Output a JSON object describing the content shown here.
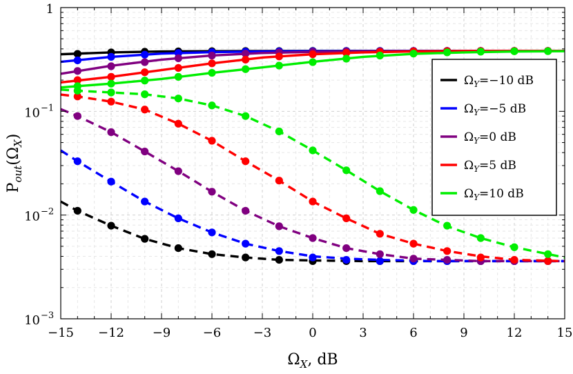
{
  "chart_data": {
    "type": "line",
    "xlabel": "Ω_X, dB",
    "ylabel": "P_out(Ω_X)",
    "xlim": [
      -15,
      15
    ],
    "ylim": [
      0.001,
      1
    ],
    "yscale": "log",
    "xticks": [
      -15,
      -12,
      -9,
      -6,
      -3,
      0,
      3,
      6,
      9,
      12,
      15
    ],
    "xtick_labels": [
      "−15",
      "−12",
      "−9",
      "−6",
      "−3",
      "0",
      "3",
      "6",
      "9",
      "12",
      "15"
    ],
    "yticks": [
      0.001,
      0.01,
      0.1,
      1
    ],
    "ytick_labels": [
      {
        "base": "10",
        "exp": "−3"
      },
      {
        "base": "10",
        "exp": "−2"
      },
      {
        "base": "10",
        "exp": "−1"
      },
      {
        "base": "1",
        "exp": ""
      }
    ],
    "grid": true,
    "legend_position": "right",
    "series": [
      {
        "name": "Ω_Y=−10 dB",
        "color": "#000000",
        "upper_x": [
          -15,
          -12,
          -9,
          -6,
          -3,
          0,
          3,
          6,
          9,
          12,
          15
        ],
        "upper_y": [
          0.355,
          0.37,
          0.378,
          0.38,
          0.381,
          0.382,
          0.382,
          0.382,
          0.382,
          0.382,
          0.382
        ],
        "upper_markers_x": [
          -14,
          -12,
          -10,
          -8,
          -6,
          -4,
          -2,
          0,
          2,
          4,
          6,
          8,
          10,
          12,
          14
        ],
        "upper_markers_y": [
          0.358,
          0.37,
          0.375,
          0.378,
          0.38,
          0.381,
          0.381,
          0.382,
          0.382,
          0.382,
          0.382,
          0.382,
          0.382,
          0.382,
          0.382
        ],
        "lower_x": [
          -15,
          -14,
          -12,
          -10,
          -8,
          -6,
          -4,
          -2,
          0,
          3,
          6,
          9,
          12,
          15
        ],
        "lower_y": [
          0.0135,
          0.011,
          0.0079,
          0.0059,
          0.0048,
          0.0042,
          0.0039,
          0.0037,
          0.00365,
          0.0036,
          0.0036,
          0.0036,
          0.0036,
          0.0036
        ],
        "lower_markers_x": [
          -14,
          -12,
          -10,
          -8,
          -6,
          -4,
          -2,
          0,
          2,
          4,
          6,
          8,
          10,
          12,
          14
        ],
        "lower_markers_y": [
          0.011,
          0.0079,
          0.0059,
          0.0048,
          0.0042,
          0.0039,
          0.0037,
          0.0036,
          0.0036,
          0.0036,
          0.0036,
          0.0036,
          0.0036,
          0.0036,
          0.0036
        ]
      },
      {
        "name": "Ω_Y=−5 dB",
        "color": "#0000ff",
        "upper_x": [
          -15,
          -12,
          -9,
          -6,
          -3,
          0,
          3,
          6,
          9,
          12,
          15
        ],
        "upper_y": [
          0.3,
          0.335,
          0.36,
          0.372,
          0.378,
          0.38,
          0.381,
          0.382,
          0.382,
          0.382,
          0.382
        ],
        "upper_markers_x": [
          -14,
          -12,
          -10,
          -8,
          -6,
          -4,
          -2,
          0,
          2,
          4,
          6,
          8,
          10,
          12,
          14
        ],
        "upper_markers_y": [
          0.31,
          0.335,
          0.352,
          0.365,
          0.372,
          0.376,
          0.378,
          0.38,
          0.381,
          0.381,
          0.382,
          0.382,
          0.382,
          0.382,
          0.382
        ],
        "lower_x": [
          -15,
          -14,
          -12,
          -10,
          -8,
          -6,
          -4,
          -2,
          0,
          2,
          4,
          7,
          10,
          15
        ],
        "lower_y": [
          0.042,
          0.033,
          0.021,
          0.0135,
          0.0093,
          0.0068,
          0.0053,
          0.0045,
          0.004,
          0.0038,
          0.0037,
          0.0036,
          0.0036,
          0.0036
        ],
        "lower_markers_x": [
          -14,
          -12,
          -10,
          -8,
          -6,
          -4,
          -2,
          0,
          2,
          4,
          6,
          8,
          10,
          12,
          14
        ],
        "lower_markers_y": [
          0.033,
          0.021,
          0.0135,
          0.0093,
          0.0068,
          0.0053,
          0.0045,
          0.0039,
          0.0037,
          0.0036,
          0.0036,
          0.0036,
          0.0036,
          0.0036,
          0.0036
        ]
      },
      {
        "name": "Ω_Y=0 dB",
        "color": "#800080",
        "upper_x": [
          -15,
          -12,
          -9,
          -6,
          -3,
          0,
          3,
          6,
          9,
          12,
          15
        ],
        "upper_y": [
          0.23,
          0.275,
          0.315,
          0.345,
          0.365,
          0.374,
          0.379,
          0.381,
          0.382,
          0.382,
          0.382
        ],
        "upper_markers_x": [
          -14,
          -12,
          -10,
          -8,
          -6,
          -4,
          -2,
          0,
          2,
          4,
          6,
          8,
          10,
          12,
          14
        ],
        "upper_markers_y": [
          0.245,
          0.272,
          0.298,
          0.325,
          0.345,
          0.36,
          0.37,
          0.375,
          0.378,
          0.38,
          0.381,
          0.382,
          0.382,
          0.382,
          0.382
        ],
        "lower_x": [
          -15,
          -14,
          -12,
          -10,
          -8,
          -6,
          -4,
          -2,
          0,
          2,
          4,
          6,
          8,
          10,
          12,
          15
        ],
        "lower_y": [
          0.105,
          0.09,
          0.063,
          0.041,
          0.0265,
          0.0168,
          0.011,
          0.0078,
          0.006,
          0.0048,
          0.0042,
          0.0038,
          0.0037,
          0.0036,
          0.0036,
          0.0036
        ],
        "lower_markers_x": [
          -14,
          -12,
          -10,
          -8,
          -6,
          -4,
          -2,
          0,
          2,
          4,
          6,
          8,
          10,
          12,
          14
        ],
        "lower_markers_y": [
          0.09,
          0.063,
          0.041,
          0.0265,
          0.0168,
          0.011,
          0.0078,
          0.006,
          0.0048,
          0.0042,
          0.0038,
          0.0037,
          0.0036,
          0.0036,
          0.0036
        ]
      },
      {
        "name": "Ω_Y=5 dB",
        "color": "#ff0000",
        "upper_x": [
          -15,
          -12,
          -9,
          -6,
          -3,
          0,
          3,
          6,
          9,
          12,
          15
        ],
        "upper_y": [
          0.19,
          0.215,
          0.25,
          0.29,
          0.33,
          0.355,
          0.37,
          0.378,
          0.381,
          0.382,
          0.382
        ],
        "upper_markers_x": [
          -14,
          -12,
          -10,
          -8,
          -6,
          -4,
          -2,
          0,
          2,
          4,
          6,
          8,
          10,
          12,
          14
        ],
        "upper_markers_y": [
          0.2,
          0.215,
          0.238,
          0.262,
          0.29,
          0.315,
          0.338,
          0.355,
          0.366,
          0.373,
          0.378,
          0.38,
          0.381,
          0.382,
          0.382
        ],
        "lower_x": [
          -15,
          -14,
          -12,
          -10,
          -8,
          -6,
          -4,
          -2,
          0,
          2,
          4,
          6,
          8,
          10,
          12,
          15
        ],
        "lower_y": [
          0.145,
          0.139,
          0.124,
          0.104,
          0.076,
          0.052,
          0.033,
          0.0215,
          0.0135,
          0.0093,
          0.0066,
          0.0053,
          0.0045,
          0.004,
          0.0037,
          0.0036
        ],
        "lower_markers_x": [
          -14,
          -12,
          -10,
          -8,
          -6,
          -4,
          -2,
          0,
          2,
          4,
          6,
          8,
          10,
          12,
          14
        ],
        "lower_markers_y": [
          0.139,
          0.124,
          0.104,
          0.076,
          0.052,
          0.033,
          0.0215,
          0.0135,
          0.0093,
          0.0066,
          0.0053,
          0.0045,
          0.0039,
          0.0037,
          0.0036
        ]
      },
      {
        "name": "Ω_Y=10 dB",
        "color": "#00ee00",
        "upper_x": [
          -15,
          -12,
          -9,
          -6,
          -3,
          0,
          3,
          6,
          9,
          12,
          15
        ],
        "upper_y": [
          0.17,
          0.185,
          0.205,
          0.235,
          0.265,
          0.3,
          0.335,
          0.358,
          0.37,
          0.377,
          0.38
        ],
        "upper_markers_x": [
          -14,
          -12,
          -10,
          -8,
          -6,
          -4,
          -2,
          0,
          2,
          4,
          6,
          8,
          10,
          12,
          14
        ],
        "upper_markers_y": [
          0.175,
          0.185,
          0.198,
          0.215,
          0.235,
          0.255,
          0.276,
          0.298,
          0.322,
          0.345,
          0.36,
          0.37,
          0.376,
          0.379,
          0.38
        ],
        "lower_x": [
          -15,
          -14,
          -12,
          -10,
          -8,
          -6,
          -4,
          -2,
          0,
          2,
          4,
          6,
          8,
          10,
          12,
          15
        ],
        "lower_y": [
          0.162,
          0.158,
          0.152,
          0.146,
          0.133,
          0.114,
          0.09,
          0.064,
          0.042,
          0.027,
          0.017,
          0.0112,
          0.0078,
          0.006,
          0.0049,
          0.0039
        ],
        "lower_markers_x": [
          -14,
          -12,
          -10,
          -8,
          -6,
          -4,
          -2,
          0,
          2,
          4,
          6,
          8,
          10,
          12,
          14
        ],
        "lower_markers_y": [
          0.158,
          0.152,
          0.146,
          0.133,
          0.114,
          0.09,
          0.064,
          0.042,
          0.027,
          0.017,
          0.0112,
          0.0079,
          0.006,
          0.0049,
          0.0042
        ]
      }
    ]
  }
}
